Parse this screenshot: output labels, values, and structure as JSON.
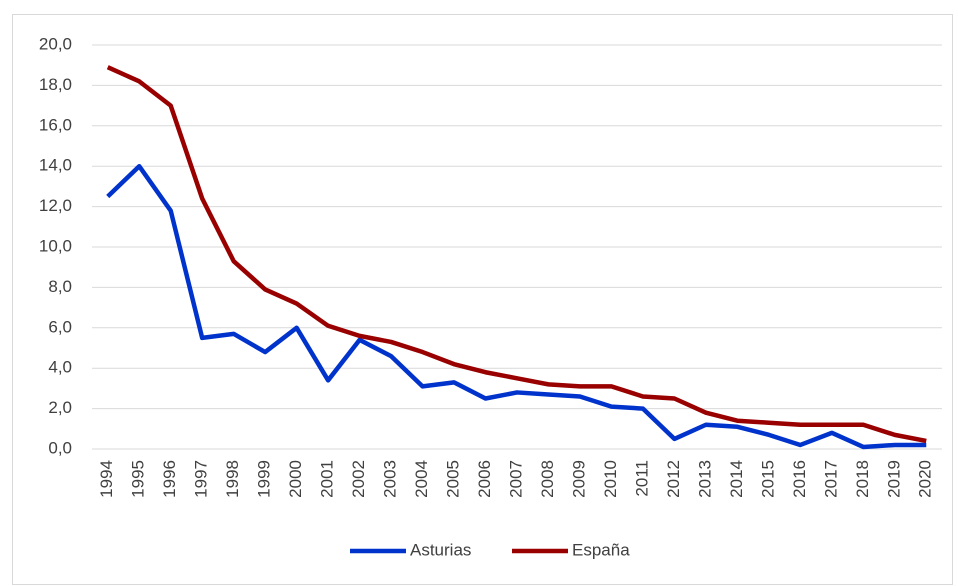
{
  "chart_data": {
    "type": "line",
    "categories": [
      "1994",
      "1995",
      "1996",
      "1997",
      "1998",
      "1999",
      "2000",
      "2001",
      "2002",
      "2003",
      "2004",
      "2005",
      "2006",
      "2007",
      "2008",
      "2009",
      "2010",
      "2011",
      "2012",
      "2013",
      "2014",
      "2015",
      "2016",
      "2017",
      "2018",
      "2019",
      "2020"
    ],
    "series": [
      {
        "name": "Asturias",
        "color": "#0033cc",
        "values": [
          12.5,
          14.0,
          11.8,
          5.5,
          5.7,
          4.8,
          6.0,
          3.4,
          5.4,
          4.6,
          3.1,
          3.3,
          2.5,
          2.8,
          2.7,
          2.6,
          2.1,
          2.0,
          0.5,
          1.2,
          1.1,
          0.7,
          0.2,
          0.8,
          0.1,
          0.2,
          0.2
        ]
      },
      {
        "name": "España",
        "color": "#990000",
        "values": [
          18.9,
          18.2,
          17.0,
          12.4,
          9.3,
          7.9,
          7.2,
          6.1,
          5.6,
          5.3,
          4.8,
          4.2,
          3.8,
          3.5,
          3.2,
          3.1,
          3.1,
          2.6,
          2.5,
          1.8,
          1.4,
          1.3,
          1.2,
          1.2,
          1.2,
          0.7,
          0.4
        ]
      }
    ],
    "ylim": [
      0,
      20
    ],
    "yticks": [
      {
        "value": 0,
        "label": "0,0"
      },
      {
        "value": 2,
        "label": "2,0"
      },
      {
        "value": 4,
        "label": "4,0"
      },
      {
        "value": 6,
        "label": "6,0"
      },
      {
        "value": 8,
        "label": "8,0"
      },
      {
        "value": 10,
        "label": "10,0"
      },
      {
        "value": 12,
        "label": "12,0"
      },
      {
        "value": 14,
        "label": "14,0"
      },
      {
        "value": 16,
        "label": "16,0"
      },
      {
        "value": 18,
        "label": "18,0"
      },
      {
        "value": 20,
        "label": "20,0"
      }
    ],
    "grid": true,
    "legend": "bottom"
  }
}
